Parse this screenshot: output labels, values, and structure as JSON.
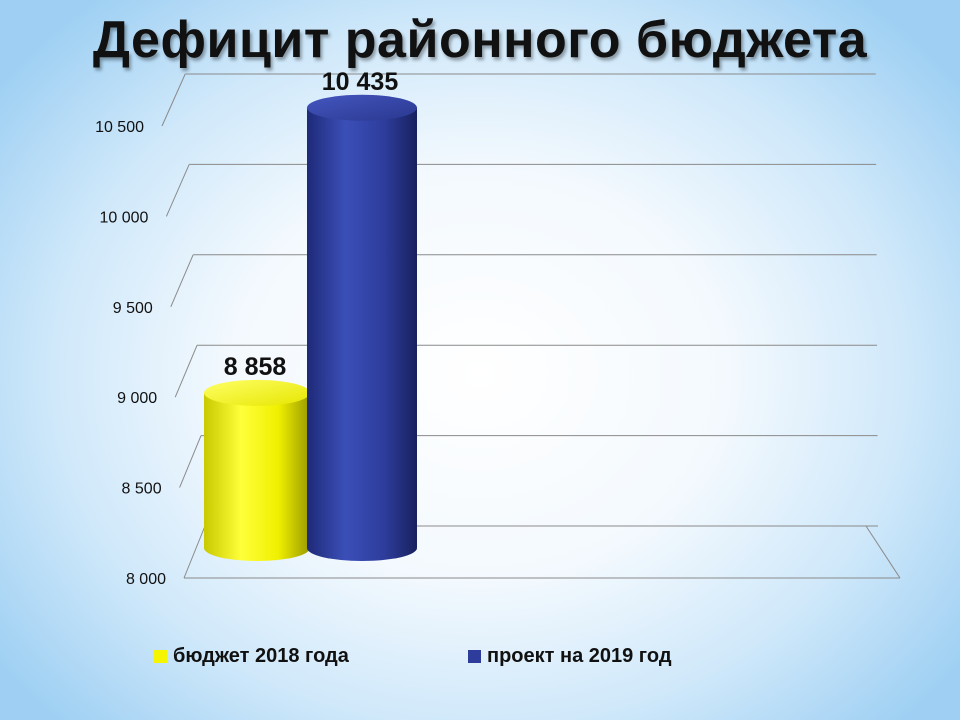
{
  "title": "Дефицит районного бюджета",
  "chart_data": {
    "type": "bar",
    "title": "Дефицит районного бюджета",
    "categories": [
      ""
    ],
    "series": [
      {
        "name": "бюджет 2018 года",
        "values": [
          8858
        ],
        "label": "8 858",
        "color": "#f5f500"
      },
      {
        "name": "проект на 2019 год",
        "values": [
          10435
        ],
        "label": "10 435",
        "color": "#2e3d9c"
      }
    ],
    "ylim": [
      8000,
      10500
    ],
    "yticks": [
      8000,
      8500,
      9000,
      9500,
      10000,
      10500
    ],
    "ytick_labels": [
      "8 000",
      "8 500",
      "9 000",
      "9 500",
      "10 000",
      "10 500"
    ],
    "grid": true,
    "legend": "bottom"
  },
  "legend": {
    "items": [
      {
        "label": "бюджет 2018 года",
        "color": "#f5f500"
      },
      {
        "label": "проект на 2019 год",
        "color": "#2e3d9c"
      }
    ]
  }
}
